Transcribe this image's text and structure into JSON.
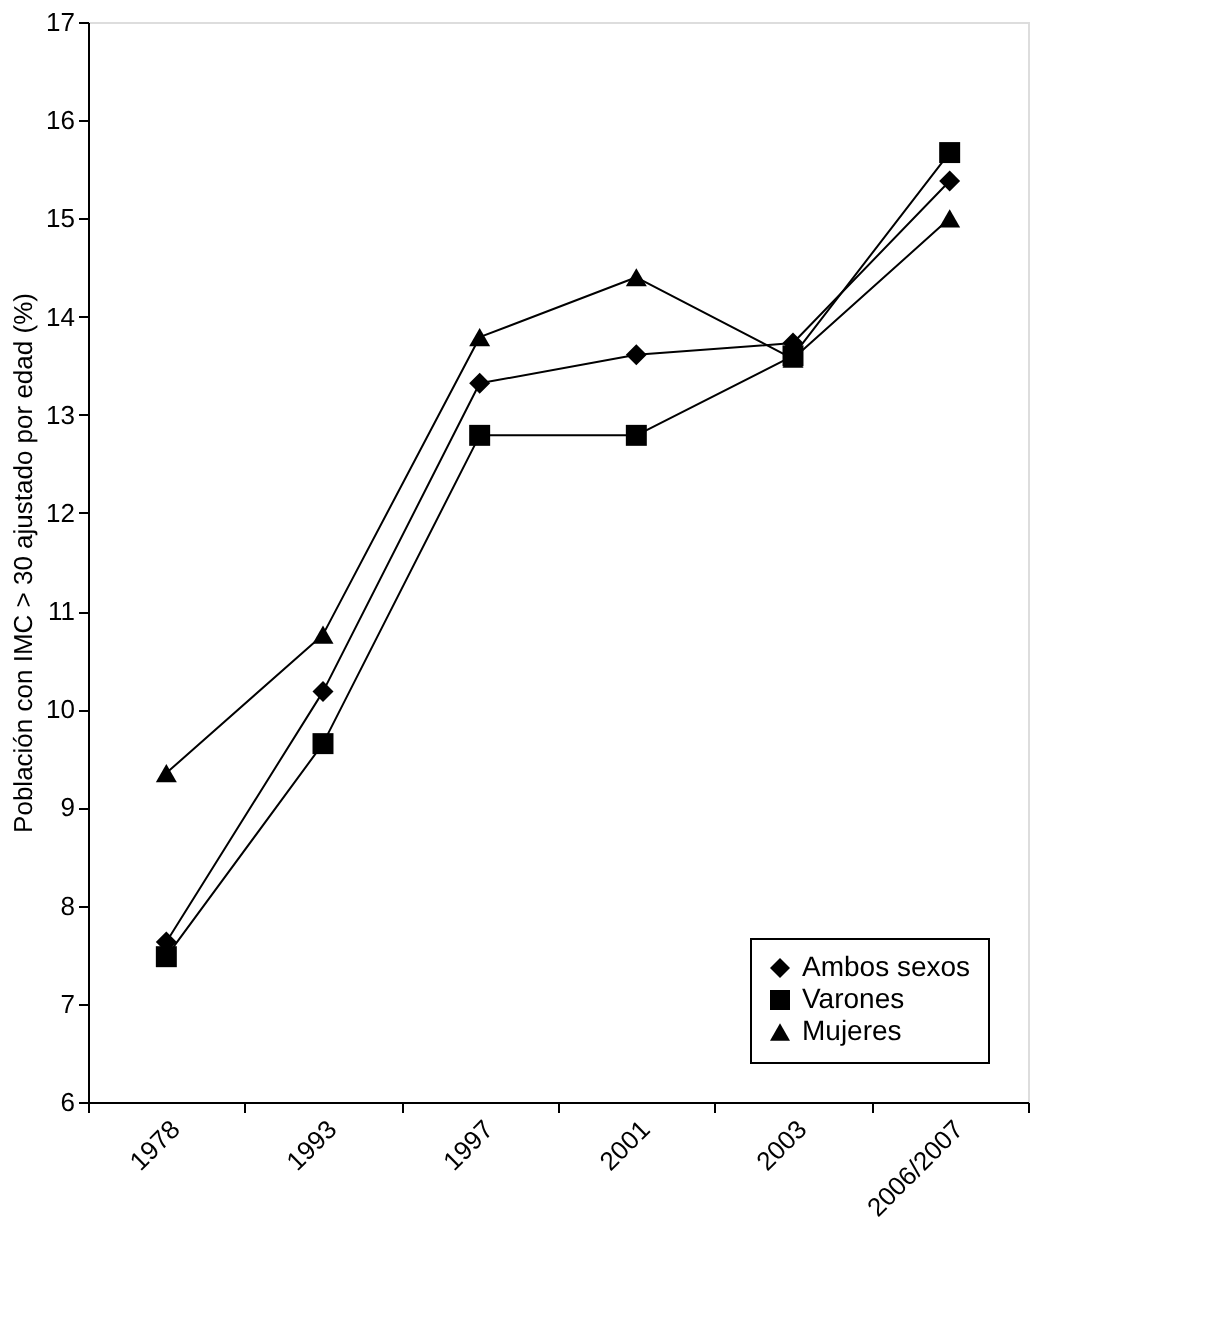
{
  "chart_data": {
    "type": "line",
    "ylabel": "Población con IMC > 30 ajustado por edad (%)",
    "categories": [
      "1978",
      "1993",
      "1997",
      "2001",
      "2003",
      "2006/2007"
    ],
    "series": [
      {
        "name": "Ambos sexos",
        "color": "#000000",
        "marker": "diamond",
        "values": [
          7.63,
          10.18,
          13.32,
          13.61,
          13.73,
          15.38
        ]
      },
      {
        "name": "Varones",
        "color": "#000000",
        "marker": "square",
        "values": [
          7.48,
          9.65,
          12.79,
          12.79,
          13.6,
          15.67
        ]
      },
      {
        "name": "Mujeres",
        "color": "#000000",
        "marker": "triangle",
        "values": [
          9.35,
          10.76,
          13.79,
          14.4,
          13.57,
          15.0
        ]
      }
    ],
    "ylim": [
      6,
      17
    ],
    "yticks": [
      6,
      7,
      8,
      9,
      10,
      11,
      12,
      13,
      14,
      15,
      16,
      17
    ],
    "grid": false,
    "legend": "bottom right",
    "line_style": "solid"
  }
}
